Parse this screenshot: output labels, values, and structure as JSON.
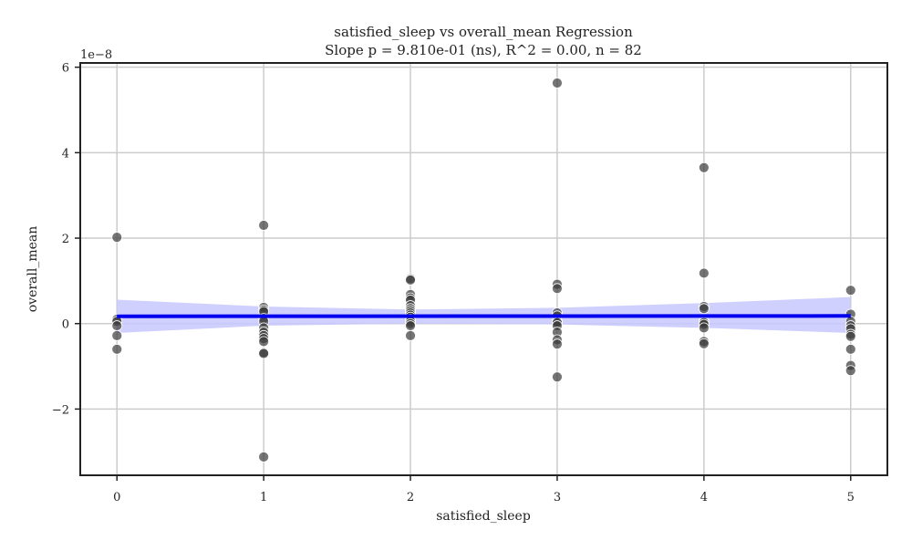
{
  "chart_data": {
    "type": "scatter",
    "title": "satisfied_sleep vs overall_mean Regression",
    "subtitle": "Slope p = 9.810e-01 (ns), R^2 = 0.00, n = 82",
    "xlabel": "satisfied_sleep",
    "ylabel": "overall_mean",
    "y_offset_label": "1e−8",
    "xlim": [
      -0.25,
      5.25
    ],
    "ylim": [
      -3.55,
      6.1
    ],
    "x_ticks": [
      0,
      1,
      2,
      3,
      4,
      5
    ],
    "x_tick_labels": [
      "0",
      "1",
      "2",
      "3",
      "4",
      "5"
    ],
    "y_ticks": [
      -2,
      0,
      2,
      4,
      6
    ],
    "y_tick_labels": [
      "−2",
      "0",
      "2",
      "4",
      "6"
    ],
    "grid": true,
    "colors": {
      "points": "#3a3a3a",
      "regression_line": "#0000ee",
      "confidence_band": "#c8c8ff",
      "grid": "#cccccc",
      "axes": "#222222"
    },
    "points": [
      {
        "x": 0,
        "y": 2.02
      },
      {
        "x": 0,
        "y": 0.1
      },
      {
        "x": 0,
        "y": 0.05
      },
      {
        "x": 0,
        "y": -0.05
      },
      {
        "x": 0,
        "y": -0.28
      },
      {
        "x": 0,
        "y": -0.6
      },
      {
        "x": 1,
        "y": 2.3
      },
      {
        "x": 1,
        "y": 0.38
      },
      {
        "x": 1,
        "y": 0.32
      },
      {
        "x": 1,
        "y": 0.28
      },
      {
        "x": 1,
        "y": 0.12
      },
      {
        "x": 1,
        "y": 0.05
      },
      {
        "x": 1,
        "y": -0.1
      },
      {
        "x": 1,
        "y": -0.2
      },
      {
        "x": 1,
        "y": -0.28
      },
      {
        "x": 1,
        "y": -0.35
      },
      {
        "x": 1,
        "y": -0.42
      },
      {
        "x": 1,
        "y": -0.68
      },
      {
        "x": 1,
        "y": -0.7
      },
      {
        "x": 1,
        "y": -3.12
      },
      {
        "x": 2,
        "y": 1.05
      },
      {
        "x": 2,
        "y": 1.02
      },
      {
        "x": 2,
        "y": 0.68
      },
      {
        "x": 2,
        "y": 0.6
      },
      {
        "x": 2,
        "y": 0.55
      },
      {
        "x": 2,
        "y": 0.42
      },
      {
        "x": 2,
        "y": 0.35
      },
      {
        "x": 2,
        "y": 0.3
      },
      {
        "x": 2,
        "y": 0.25
      },
      {
        "x": 2,
        "y": 0.2
      },
      {
        "x": 2,
        "y": 0.15
      },
      {
        "x": 2,
        "y": 0.1
      },
      {
        "x": 2,
        "y": 0.05
      },
      {
        "x": 2,
        "y": 0.0
      },
      {
        "x": 2,
        "y": -0.05
      },
      {
        "x": 2,
        "y": -0.28
      },
      {
        "x": 3,
        "y": 5.63
      },
      {
        "x": 3,
        "y": 0.92
      },
      {
        "x": 3,
        "y": 0.82
      },
      {
        "x": 3,
        "y": 0.25
      },
      {
        "x": 3,
        "y": 0.18
      },
      {
        "x": 3,
        "y": 0.05
      },
      {
        "x": 3,
        "y": 0.02
      },
      {
        "x": 3,
        "y": -0.05
      },
      {
        "x": 3,
        "y": -0.2
      },
      {
        "x": 3,
        "y": -0.38
      },
      {
        "x": 3,
        "y": -0.48
      },
      {
        "x": 3,
        "y": -1.25
      },
      {
        "x": 4,
        "y": 3.65
      },
      {
        "x": 4,
        "y": 1.18
      },
      {
        "x": 4,
        "y": 0.4
      },
      {
        "x": 4,
        "y": 0.35
      },
      {
        "x": 4,
        "y": 0.05
      },
      {
        "x": 4,
        "y": 0.02
      },
      {
        "x": 4,
        "y": -0.02
      },
      {
        "x": 4,
        "y": -0.1
      },
      {
        "x": 4,
        "y": -0.42
      },
      {
        "x": 4,
        "y": -0.47
      },
      {
        "x": 5,
        "y": 0.78
      },
      {
        "x": 5,
        "y": 0.22
      },
      {
        "x": 5,
        "y": 0.05
      },
      {
        "x": 5,
        "y": -0.05
      },
      {
        "x": 5,
        "y": -0.12
      },
      {
        "x": 5,
        "y": -0.25
      },
      {
        "x": 5,
        "y": -0.3
      },
      {
        "x": 5,
        "y": -0.6
      },
      {
        "x": 5,
        "y": -0.98
      },
      {
        "x": 5,
        "y": -1.1
      }
    ],
    "regression": {
      "x": [
        0,
        5
      ],
      "y": [
        0.17,
        0.18
      ],
      "band_x": [
        0,
        1,
        2,
        3,
        4,
        5
      ],
      "band_lower": [
        -0.22,
        -0.05,
        0.0,
        -0.02,
        -0.1,
        -0.22
      ],
      "band_upper": [
        0.56,
        0.4,
        0.33,
        0.37,
        0.48,
        0.62
      ]
    }
  }
}
